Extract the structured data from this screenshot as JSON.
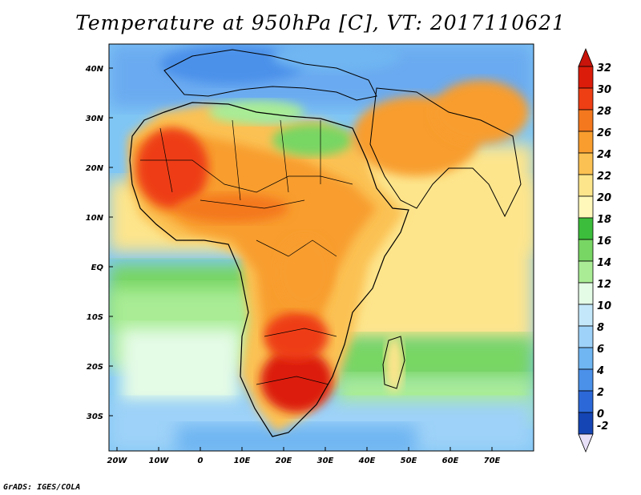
{
  "title": "Temperature at 950hPa [C], VT: 2017110621",
  "credit": "GrADS: IGES/COLA",
  "map": {
    "lat_labels": [
      "40N",
      "30N",
      "20N",
      "10N",
      "EQ",
      "10S",
      "20S",
      "30S"
    ],
    "lon_labels": [
      "20W",
      "10W",
      "0",
      "10E",
      "20E",
      "30E",
      "40E",
      "50E",
      "60E",
      "70E"
    ]
  },
  "colorbar": {
    "labels": [
      "32",
      "30",
      "28",
      "26",
      "24",
      "22",
      "20",
      "18",
      "16",
      "14",
      "12",
      "10",
      "8",
      "6",
      "4",
      "2",
      "0",
      "-2"
    ],
    "colors": [
      "#dc1c0a",
      "#ee3e14",
      "#f4781e",
      "#f89d2e",
      "#fbc152",
      "#fde58c",
      "#fff8ba",
      "#3cbe3c",
      "#78d664",
      "#a9ec95",
      "#e4fbe6",
      "#c4e8fa",
      "#9ed2f8",
      "#6fb6f2",
      "#4b91ea",
      "#2c68d8",
      "#1545b4",
      "#0c2080",
      "#06125a"
    ],
    "top_color": "#c8140a",
    "bottom_color": "#e8e0f8"
  }
}
